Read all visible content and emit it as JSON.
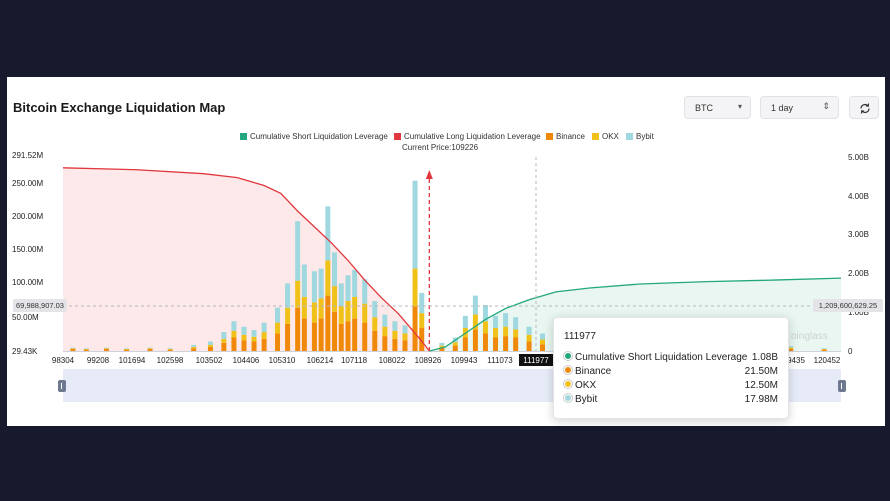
{
  "header": {
    "title": "Bitcoin Exchange Liquidation Map",
    "symbol_select": "BTC",
    "range_select": "1 day"
  },
  "legend": [
    {
      "label": "Cumulative Short Liquidation Leverage",
      "color": "#22a77e"
    },
    {
      "label": "Cumulative Long Liquidation Leverage",
      "color": "#e0383e"
    },
    {
      "label": "Binance",
      "color": "#f0890a"
    },
    {
      "label": "OKX",
      "color": "#f0c219"
    },
    {
      "label": "Bybit",
      "color": "#9fd8df"
    }
  ],
  "current_price_label": "Current Price:109226",
  "axes": {
    "left_ticks": [
      "291.52M",
      "250.00M",
      "200.00M",
      "150.00M",
      "100.00M",
      "50.00M",
      "29.43K"
    ],
    "right_ticks": [
      "5.00B",
      "4.00B",
      "3.00B",
      "2.00B",
      "1.00B",
      "0"
    ],
    "x_ticks": [
      "98304",
      "99208",
      "101694",
      "102598",
      "103502",
      "104406",
      "105310",
      "106214",
      "107118",
      "108022",
      "108926",
      "109943",
      "111073",
      "111977",
      "9435",
      "120452"
    ],
    "left_marker": "69,988,907.03",
    "right_marker": "1,209,600,629.25"
  },
  "watermark": "oinglass",
  "tooltip": {
    "title": "111977",
    "rows": [
      {
        "label": "Cumulative Short Liquidation Leverage",
        "value": "1.08B",
        "color": "#22a77e"
      },
      {
        "label": "Binance",
        "value": "21.50M",
        "color": "#f0890a"
      },
      {
        "label": "OKX",
        "value": "12.50M",
        "color": "#f0c219"
      },
      {
        "label": "Bybit",
        "value": "17.98M",
        "color": "#9fd8df"
      }
    ]
  },
  "chart_data": {
    "type": "bar",
    "x_range": [
      98304,
      121500
    ],
    "y_left_range": [
      0,
      291.52
    ],
    "y_right_range": [
      0,
      5
    ],
    "y_left_unit": "M",
    "y_right_unit": "B",
    "current_price": 109226,
    "series": [
      {
        "name": "Binance",
        "color": "#f0890a",
        "values": [
          [
            98600,
            3
          ],
          [
            99000,
            2
          ],
          [
            99600,
            3
          ],
          [
            100200,
            2
          ],
          [
            100900,
            3
          ],
          [
            101500,
            2
          ],
          [
            102200,
            4
          ],
          [
            102700,
            6
          ],
          [
            103100,
            12
          ],
          [
            103400,
            20
          ],
          [
            103700,
            16
          ],
          [
            104000,
            14
          ],
          [
            104300,
            18
          ],
          [
            104700,
            26
          ],
          [
            105000,
            40
          ],
          [
            105300,
            64
          ],
          [
            105500,
            48
          ],
          [
            105800,
            42
          ],
          [
            106000,
            48
          ],
          [
            106200,
            82
          ],
          [
            106400,
            58
          ],
          [
            106600,
            40
          ],
          [
            106800,
            44
          ],
          [
            107000,
            48
          ],
          [
            107300,
            42
          ],
          [
            107600,
            30
          ],
          [
            107900,
            22
          ],
          [
            108200,
            18
          ],
          [
            108500,
            16
          ],
          [
            108800,
            66
          ],
          [
            109000,
            34
          ],
          [
            109600,
            5
          ],
          [
            110000,
            8
          ],
          [
            110300,
            20
          ],
          [
            110600,
            32
          ],
          [
            110900,
            26
          ],
          [
            111200,
            20
          ],
          [
            111500,
            22
          ],
          [
            111800,
            20
          ],
          [
            112200,
            14
          ],
          [
            112600,
            10
          ],
          [
            113200,
            5
          ],
          [
            114000,
            4
          ],
          [
            115000,
            3
          ],
          [
            116200,
            3
          ],
          [
            117500,
            3
          ],
          [
            118800,
            3
          ],
          [
            120000,
            3
          ],
          [
            121000,
            2
          ]
        ]
      },
      {
        "name": "OKX",
        "color": "#f0c219",
        "values": [
          [
            98600,
            1
          ],
          [
            99000,
            1
          ],
          [
            99600,
            1
          ],
          [
            100200,
            1
          ],
          [
            100900,
            1
          ],
          [
            101500,
            1
          ],
          [
            102200,
            2
          ],
          [
            102700,
            3
          ],
          [
            103100,
            6
          ],
          [
            103400,
            10
          ],
          [
            103700,
            8
          ],
          [
            104000,
            7
          ],
          [
            104300,
            10
          ],
          [
            104700,
            16
          ],
          [
            105000,
            24
          ],
          [
            105300,
            40
          ],
          [
            105500,
            32
          ],
          [
            105800,
            30
          ],
          [
            106000,
            30
          ],
          [
            106200,
            52
          ],
          [
            106400,
            38
          ],
          [
            106600,
            26
          ],
          [
            106800,
            30
          ],
          [
            107000,
            32
          ],
          [
            107300,
            28
          ],
          [
            107600,
            20
          ],
          [
            107900,
            14
          ],
          [
            108200,
            12
          ],
          [
            108500,
            10
          ],
          [
            108800,
            56
          ],
          [
            109000,
            22
          ],
          [
            109600,
            3
          ],
          [
            110000,
            5
          ],
          [
            110300,
            14
          ],
          [
            110600,
            22
          ],
          [
            110900,
            18
          ],
          [
            111200,
            14
          ],
          [
            111500,
            14
          ],
          [
            111800,
            12
          ],
          [
            112200,
            10
          ],
          [
            112600,
            7
          ],
          [
            113200,
            3
          ],
          [
            114000,
            3
          ],
          [
            115000,
            2
          ],
          [
            116200,
            2
          ],
          [
            117500,
            2
          ],
          [
            118800,
            2
          ],
          [
            120000,
            2
          ],
          [
            121000,
            1
          ]
        ]
      },
      {
        "name": "Bybit",
        "color": "#9fd8df",
        "values": [
          [
            98600,
            1
          ],
          [
            99000,
            1
          ],
          [
            99600,
            1
          ],
          [
            100200,
            1
          ],
          [
            100900,
            1
          ],
          [
            101500,
            1
          ],
          [
            102200,
            3
          ],
          [
            102700,
            5
          ],
          [
            103100,
            10
          ],
          [
            103400,
            14
          ],
          [
            103700,
            12
          ],
          [
            104000,
            10
          ],
          [
            104300,
            14
          ],
          [
            104700,
            22
          ],
          [
            105000,
            36
          ],
          [
            105300,
            88
          ],
          [
            105500,
            48
          ],
          [
            105800,
            46
          ],
          [
            106000,
            44
          ],
          [
            106200,
            80
          ],
          [
            106400,
            50
          ],
          [
            106600,
            34
          ],
          [
            106800,
            38
          ],
          [
            107000,
            40
          ],
          [
            107300,
            36
          ],
          [
            107600,
            24
          ],
          [
            107900,
            18
          ],
          [
            108200,
            14
          ],
          [
            108500,
            12
          ],
          [
            108800,
            130
          ],
          [
            109000,
            30
          ],
          [
            109600,
            4
          ],
          [
            110000,
            7
          ],
          [
            110300,
            18
          ],
          [
            110600,
            28
          ],
          [
            110900,
            24
          ],
          [
            111200,
            18
          ],
          [
            111500,
            20
          ],
          [
            111800,
            18
          ],
          [
            112200,
            12
          ],
          [
            112600,
            9
          ],
          [
            113200,
            4
          ],
          [
            114000,
            3
          ],
          [
            115000,
            2
          ],
          [
            116200,
            2
          ],
          [
            117500,
            2
          ],
          [
            118800,
            2
          ],
          [
            120000,
            2
          ],
          [
            121000,
            1
          ]
        ]
      },
      {
        "name": "Cumulative Long Liquidation Leverage",
        "color": "#e0383e",
        "values": [
          [
            98304,
            4.65
          ],
          [
            100500,
            4.6
          ],
          [
            102500,
            4.5
          ],
          [
            103500,
            4.4
          ],
          [
            104300,
            4.2
          ],
          [
            104800,
            4.0
          ],
          [
            105300,
            3.55
          ],
          [
            105800,
            3.15
          ],
          [
            106300,
            2.75
          ],
          [
            106800,
            2.3
          ],
          [
            107300,
            1.8
          ],
          [
            107800,
            1.35
          ],
          [
            108300,
            0.95
          ],
          [
            108700,
            0.55
          ],
          [
            109000,
            0.25
          ],
          [
            109226,
            0.0
          ]
        ]
      },
      {
        "name": "Cumulative Short Liquidation Leverage",
        "color": "#22a77e",
        "values": [
          [
            109226,
            0.0
          ],
          [
            109700,
            0.1
          ],
          [
            110300,
            0.45
          ],
          [
            110900,
            0.8
          ],
          [
            111500,
            1.08
          ],
          [
            112200,
            1.3
          ],
          [
            113000,
            1.5
          ],
          [
            114000,
            1.6
          ],
          [
            115500,
            1.7
          ],
          [
            117500,
            1.76
          ],
          [
            119500,
            1.8
          ],
          [
            121500,
            1.85
          ]
        ]
      }
    ]
  }
}
